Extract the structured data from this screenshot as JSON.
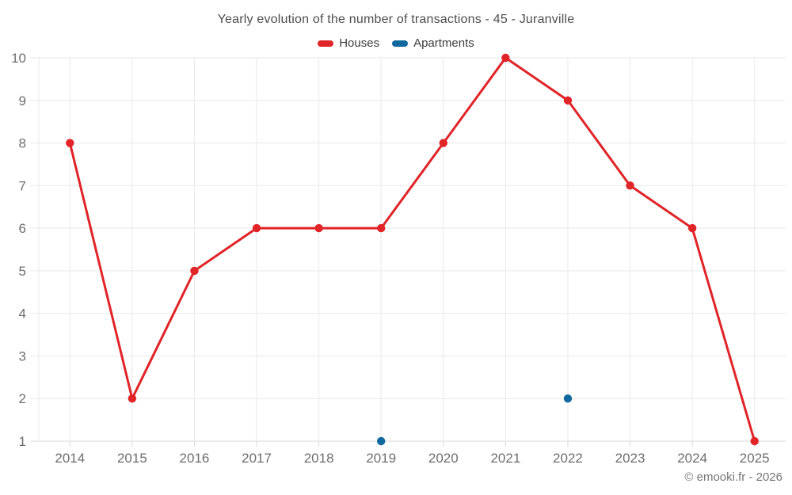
{
  "title": "Yearly evolution of the number of transactions - 45 - Juranville",
  "footer": "© emooki.fr - 2026",
  "legend": [
    {
      "label": "Houses",
      "color": "#e02428"
    },
    {
      "label": "Apartments",
      "color": "#10699e"
    }
  ],
  "colors": {
    "houses": "#e02428",
    "apartments": "#10699e",
    "grid": "#e9e9e9",
    "axis_line": "#d8d8d8",
    "tick_label": "#6e6e6e",
    "title_text": "#4d4d4d"
  },
  "chart_data": {
    "type": "line",
    "title": "Yearly evolution of the number of transactions - 45 - Juranville",
    "categories": [
      "2014",
      "2015",
      "2016",
      "2017",
      "2018",
      "2019",
      "2020",
      "2021",
      "2022",
      "2023",
      "2024",
      "2025"
    ],
    "series": [
      {
        "name": "Houses",
        "color": "#e02428",
        "mode": "line+markers",
        "values": [
          8,
          2,
          5,
          6,
          6,
          6,
          8,
          10,
          9,
          7,
          6,
          1
        ]
      },
      {
        "name": "Apartments",
        "color": "#10699e",
        "mode": "markers",
        "values": [
          null,
          null,
          null,
          null,
          null,
          1,
          null,
          null,
          2,
          null,
          null,
          null
        ]
      }
    ],
    "xlabel": "",
    "ylabel": "",
    "ylim": [
      1,
      10
    ],
    "ytick_step": 1,
    "yticks": [
      1,
      2,
      3,
      4,
      5,
      6,
      7,
      8,
      9,
      10
    ],
    "grid": true,
    "legend_position": "top",
    "annotations": []
  }
}
